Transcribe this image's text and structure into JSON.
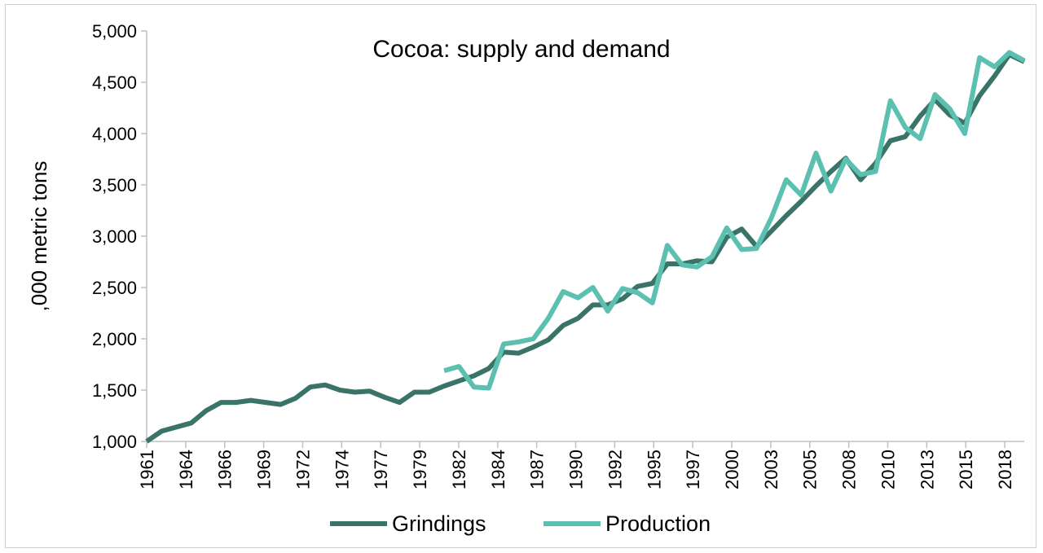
{
  "chart_data": {
    "type": "line",
    "title": "Cocoa: supply and demand",
    "ylabel": ",000 metric tons",
    "xlabel": "",
    "ylim": [
      1000,
      5000
    ],
    "y_ticks": [
      "1,000",
      "1,500",
      "2,000",
      "2,500",
      "3,000",
      "3,500",
      "4,000",
      "4,500",
      "5,000"
    ],
    "y_tick_values": [
      1000,
      1500,
      2000,
      2500,
      3000,
      3500,
      4000,
      4500,
      5000
    ],
    "x_tick_labels": [
      "1961",
      "1964",
      "1966",
      "1969",
      "1972",
      "1974",
      "1977",
      "1979",
      "1982",
      "1984",
      "1987",
      "1990",
      "1992",
      "1995",
      "1997",
      "2000",
      "2003",
      "2005",
      "2008",
      "2010",
      "2013",
      "2015",
      "2018"
    ],
    "x": [
      1961,
      1962,
      1963,
      1964,
      1965,
      1966,
      1967,
      1968,
      1969,
      1970,
      1971,
      1972,
      1973,
      1974,
      1975,
      1976,
      1977,
      1978,
      1979,
      1980,
      1981,
      1982,
      1983,
      1984,
      1985,
      1986,
      1987,
      1988,
      1989,
      1990,
      1991,
      1992,
      1993,
      1994,
      1995,
      1996,
      1997,
      1998,
      1999,
      2000,
      2001,
      2002,
      2003,
      2004,
      2005,
      2006,
      2007,
      2008,
      2009,
      2010,
      2011,
      2012,
      2013,
      2014,
      2015,
      2016,
      2017,
      2018,
      2019,
      2020
    ],
    "grid": false,
    "legend_position": "bottom",
    "series": [
      {
        "name": "Grindings",
        "color": "#3a7468",
        "values": [
          1000,
          1100,
          1140,
          1180,
          1300,
          1380,
          1380,
          1400,
          1380,
          1360,
          1420,
          1530,
          1550,
          1500,
          1480,
          1490,
          1430,
          1380,
          1480,
          1480,
          1540,
          1590,
          1640,
          1710,
          1870,
          1860,
          1920,
          1990,
          2130,
          2200,
          2330,
          2330,
          2390,
          2510,
          2540,
          2730,
          2730,
          2760,
          2750,
          2990,
          3070,
          2900,
          3050,
          3200,
          3340,
          3490,
          3630,
          3760,
          3550,
          3710,
          3930,
          3970,
          4170,
          4330,
          4180,
          4100,
          4370,
          4560,
          4770,
          4700
        ]
      },
      {
        "name": "Production",
        "color": "#5cc0b1",
        "values": [
          null,
          null,
          null,
          null,
          null,
          null,
          null,
          null,
          null,
          null,
          null,
          null,
          null,
          null,
          null,
          null,
          null,
          null,
          null,
          null,
          1690,
          1730,
          1530,
          1520,
          1950,
          1970,
          2000,
          2200,
          2460,
          2400,
          2500,
          2270,
          2490,
          2450,
          2350,
          2910,
          2720,
          2700,
          2800,
          3080,
          2870,
          2880,
          3180,
          3550,
          3400,
          3810,
          3440,
          3750,
          3600,
          3630,
          4320,
          4060,
          3950,
          4380,
          4240,
          4000,
          4740,
          4650,
          4790,
          4710
        ]
      }
    ]
  }
}
